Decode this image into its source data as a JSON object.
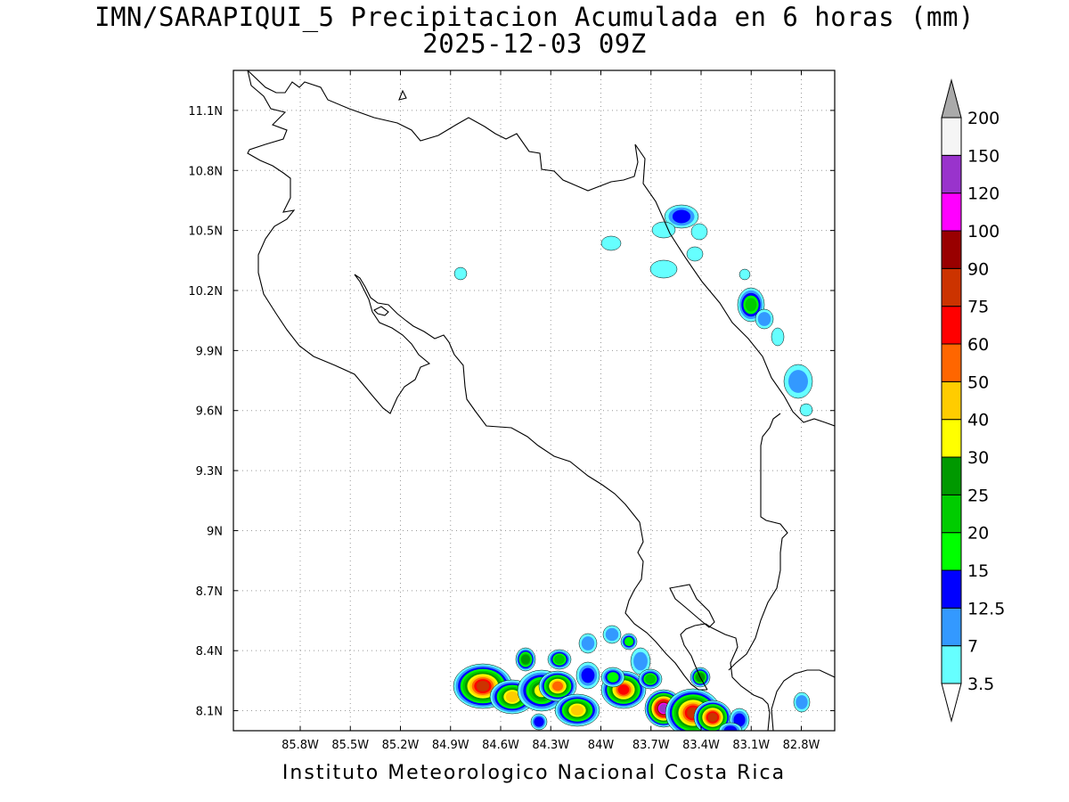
{
  "title": {
    "line1": "IMN/SARAPIQUI_5 Precipitacion Acumulada en 6 horas (mm)",
    "line2": "2025-12-03 09Z"
  },
  "footer": "Instituto Meteorologico Nacional Costa Rica",
  "map": {
    "lon_range": [
      -86.2,
      -82.6
    ],
    "lat_range": [
      8.0,
      11.3
    ],
    "lon_ticks": [
      "85.8W",
      "85.5W",
      "85.2W",
      "84.9W",
      "84.6W",
      "84.3W",
      "84W",
      "83.7W",
      "83.4W",
      "83.1W",
      "82.8W"
    ],
    "lat_ticks": [
      "11.1N",
      "10.8N",
      "10.5N",
      "10.2N",
      "9.9N",
      "9.6N",
      "9.3N",
      "9N",
      "8.7N",
      "8.4N",
      "8.1N"
    ],
    "grid": true
  },
  "colorbar": {
    "levels": [
      "3.5",
      "7",
      "12.5",
      "15",
      "20",
      "25",
      "30",
      "40",
      "50",
      "60",
      "75",
      "90",
      "100",
      "120",
      "150",
      "200"
    ],
    "colors": [
      "#66ffff",
      "#3399ff",
      "#0000ff",
      "#00ff00",
      "#00cc00",
      "#009900",
      "#ffff00",
      "#ffcc00",
      "#ff6600",
      "#ff0000",
      "#cc3300",
      "#990000",
      "#ff00ff",
      "#9933cc",
      "#f5f5f5"
    ],
    "low_end_color": "#ffffff",
    "high_end_color": "#aaaaaa"
  }
}
